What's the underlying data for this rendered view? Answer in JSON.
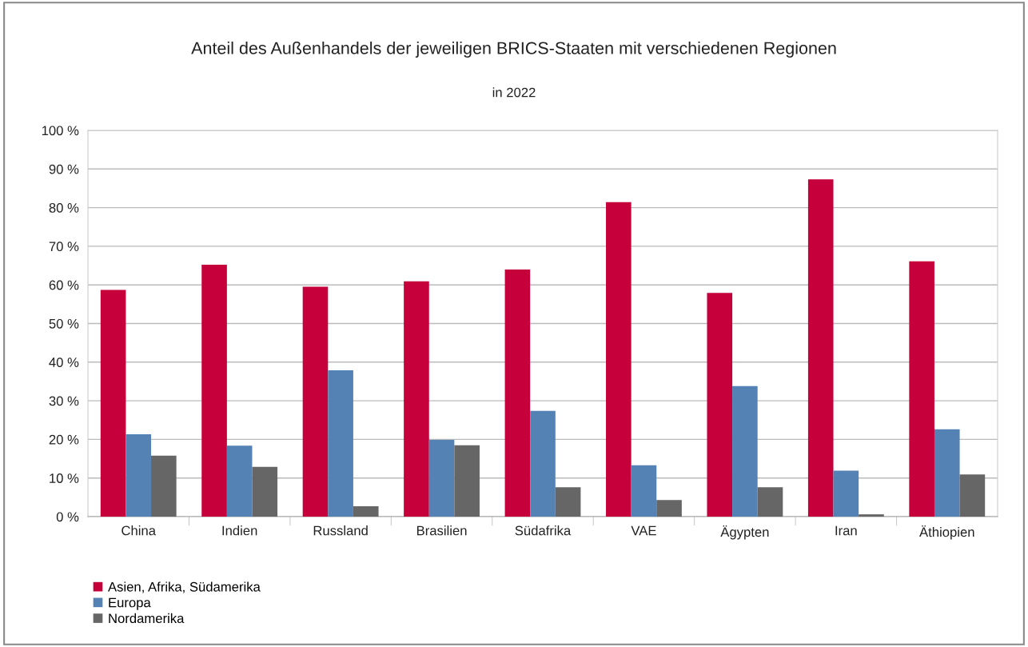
{
  "chart_data": {
    "type": "bar",
    "title": "Anteil des Außenhandels der jeweiligen BRICS-Staaten mit verschiedenen Regionen",
    "subtitle": "in 2022",
    "categories": [
      "China",
      "Indien",
      "Russland",
      "Brasilien",
      "Südafrika",
      "VAE",
      "Ägypten",
      "Iran",
      "Äthiopien"
    ],
    "series": [
      {
        "name": "Asien, Afrika, Südamerika",
        "color": "#c5003b",
        "values": [
          58.7,
          65.2,
          59.5,
          60.9,
          64.0,
          81.4,
          57.9,
          87.3,
          66.1
        ]
      },
      {
        "name": "Europa",
        "color": "#5582b5",
        "values": [
          21.3,
          18.4,
          37.9,
          19.9,
          27.4,
          13.3,
          33.8,
          11.9,
          22.6
        ]
      },
      {
        "name": "Nordamerika",
        "color": "#666666",
        "values": [
          15.8,
          12.9,
          2.7,
          18.5,
          7.6,
          4.3,
          7.6,
          0.6,
          10.9
        ]
      }
    ],
    "ylim": [
      0,
      100
    ],
    "yticks": [
      {
        "value": 0,
        "label": "0 %"
      },
      {
        "value": 10,
        "label": "10 %"
      },
      {
        "value": 20,
        "label": "20 %"
      },
      {
        "value": 30,
        "label": "30 %"
      },
      {
        "value": 40,
        "label": "40 %"
      },
      {
        "value": 50,
        "label": "50 %"
      },
      {
        "value": 60,
        "label": "60 %"
      },
      {
        "value": 70,
        "label": "70 %"
      },
      {
        "value": 80,
        "label": "80 %"
      },
      {
        "value": 90,
        "label": "90 %"
      },
      {
        "value": 100,
        "label": "100 %"
      }
    ],
    "grid": "y",
    "legend": "bottom left"
  }
}
